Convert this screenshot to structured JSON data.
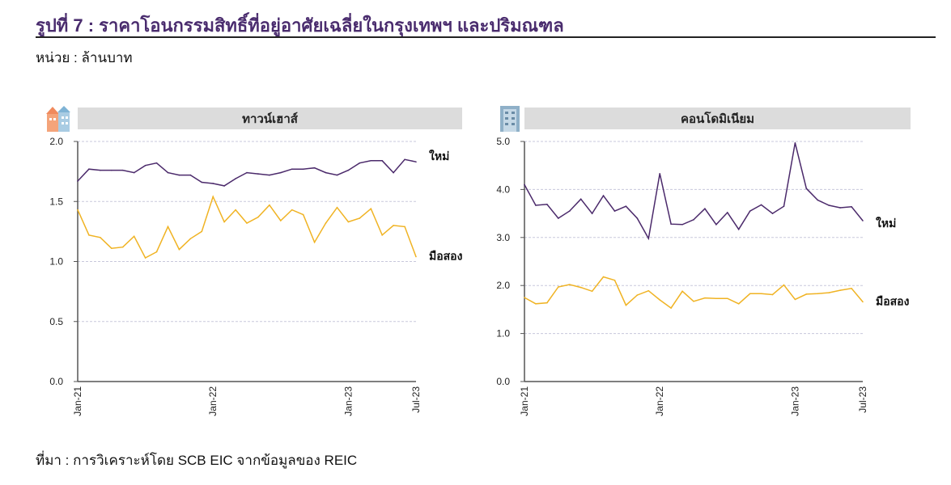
{
  "title": "รูปที่ 7 : ราคาโอนกรรมสิทธิ์ที่อยู่อาศัยเฉลี่ยในกรุงเทพฯ และปริมณฑล",
  "unit": "หน่วย : ล้านบาท",
  "source": "ที่มา : การวิเคราะห์โดย SCB EIC จากข้อมูลของ REIC",
  "colors": {
    "new": "#4b2a6b",
    "used": "#f0b323",
    "grid": "#c8c8dc",
    "header": "#dcdcdc"
  },
  "chart_data": [
    {
      "type": "line",
      "title": "ทาวน์เฮาส์",
      "icon": "townhouse-icon",
      "x_start": "Jan-21",
      "x_end": "Jul-23",
      "x_tick_labels": [
        "Jan-21",
        "Jan-22",
        "Jan-23",
        "Jul-23"
      ],
      "x_tick_index": [
        0,
        12,
        24,
        30
      ],
      "ylim": [
        0,
        2.0
      ],
      "y_ticks": [
        "0.0",
        "0.5",
        "1.0",
        "1.5",
        "2.0"
      ],
      "y_tick_values": [
        0,
        0.5,
        1.0,
        1.5,
        2.0
      ],
      "grid": true,
      "series": [
        {
          "name": "ใหม่",
          "color_key": "new",
          "values": [
            1.67,
            1.77,
            1.76,
            1.76,
            1.76,
            1.74,
            1.8,
            1.82,
            1.74,
            1.72,
            1.72,
            1.66,
            1.65,
            1.63,
            1.69,
            1.74,
            1.73,
            1.72,
            1.74,
            1.77,
            1.77,
            1.78,
            1.74,
            1.72,
            1.76,
            1.82,
            1.84,
            1.84,
            1.74,
            1.85,
            1.83
          ]
        },
        {
          "name": "มือสอง",
          "color_key": "used",
          "values": [
            1.43,
            1.22,
            1.2,
            1.11,
            1.12,
            1.21,
            1.03,
            1.08,
            1.29,
            1.1,
            1.19,
            1.25,
            1.54,
            1.33,
            1.43,
            1.32,
            1.37,
            1.47,
            1.34,
            1.43,
            1.39,
            1.16,
            1.32,
            1.45,
            1.33,
            1.36,
            1.44,
            1.22,
            1.3,
            1.29,
            1.04
          ]
        }
      ]
    },
    {
      "type": "line",
      "title": "คอนโดมิเนียม",
      "icon": "condominium-icon",
      "x_start": "Jan-21",
      "x_end": "Jul-23",
      "x_tick_labels": [
        "Jan-21",
        "Jan-22",
        "Jan-23",
        "Jul-23"
      ],
      "x_tick_index": [
        0,
        12,
        24,
        30
      ],
      "ylim": [
        0,
        5.0
      ],
      "y_ticks": [
        "0.0",
        "1.0",
        "2.0",
        "3.0",
        "4.0",
        "5.0"
      ],
      "y_tick_values": [
        0,
        1,
        2,
        3,
        4,
        5
      ],
      "grid": true,
      "series": [
        {
          "name": "ใหม่",
          "color_key": "new",
          "values": [
            4.1,
            3.67,
            3.69,
            3.4,
            3.55,
            3.8,
            3.5,
            3.87,
            3.55,
            3.65,
            3.4,
            2.98,
            4.33,
            3.28,
            3.27,
            3.37,
            3.6,
            3.27,
            3.52,
            3.17,
            3.55,
            3.68,
            3.5,
            3.65,
            4.97,
            4.02,
            3.78,
            3.67,
            3.62,
            3.64,
            3.35
          ]
        },
        {
          "name": "มือสอง",
          "color_key": "used",
          "values": [
            1.75,
            1.62,
            1.64,
            1.97,
            2.02,
            1.96,
            1.88,
            2.18,
            2.11,
            1.59,
            1.8,
            1.89,
            1.7,
            1.53,
            1.88,
            1.67,
            1.74,
            1.73,
            1.73,
            1.62,
            1.83,
            1.83,
            1.81,
            2.01,
            1.71,
            1.82,
            1.83,
            1.85,
            1.9,
            1.94,
            1.66
          ]
        }
      ]
    }
  ]
}
